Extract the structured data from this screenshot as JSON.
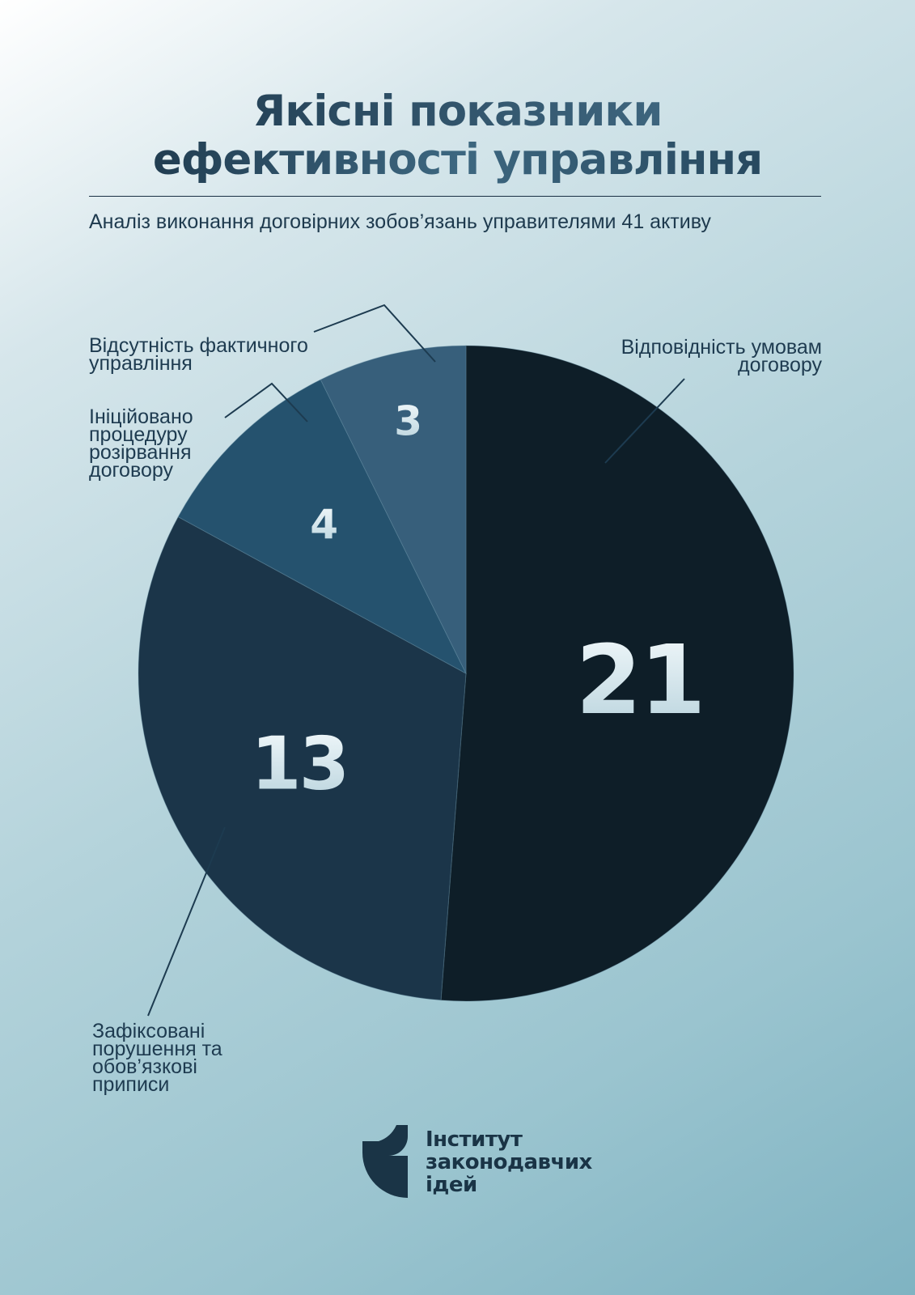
{
  "header": {
    "title_line1": "Якісні показники",
    "title_line2": "ефективності управління",
    "subtitle": "Аналіз виконання договірних зобов’язань управителями 41 активу"
  },
  "chart_data": {
    "type": "pie",
    "title": "Якісні показники ефективності управління",
    "subtitle": "Аналіз виконання договірних зобов’язань управителями 41 активу",
    "total": 41,
    "slices": [
      {
        "label": "Відповідність умовам договору",
        "label_lines": [
          "Відповідність умовам",
          "договору"
        ],
        "value": 21,
        "color": "#0e1e28"
      },
      {
        "label": "Зафіксовані порушення та обов’язкові приписи",
        "label_lines": [
          "Зафіксовані",
          "порушення та",
          "обов’язкові",
          "приписи"
        ],
        "value": 13,
        "color": "#1b3549"
      },
      {
        "label": "Ініційовано процедуру розірвання договору",
        "label_lines": [
          "Ініційовано",
          "процедуру",
          "розірвання",
          "договору"
        ],
        "value": 4,
        "color": "#25526e"
      },
      {
        "label": "Відсутність фактичного управління",
        "label_lines": [
          "Відсутність фактичного",
          "управління"
        ],
        "value": 3,
        "color": "#375f7b"
      }
    ],
    "legend": "none"
  },
  "logo": {
    "line1": "Інститут",
    "line2": "законодавчих",
    "line3": "ідей",
    "color": "#1a3446"
  }
}
